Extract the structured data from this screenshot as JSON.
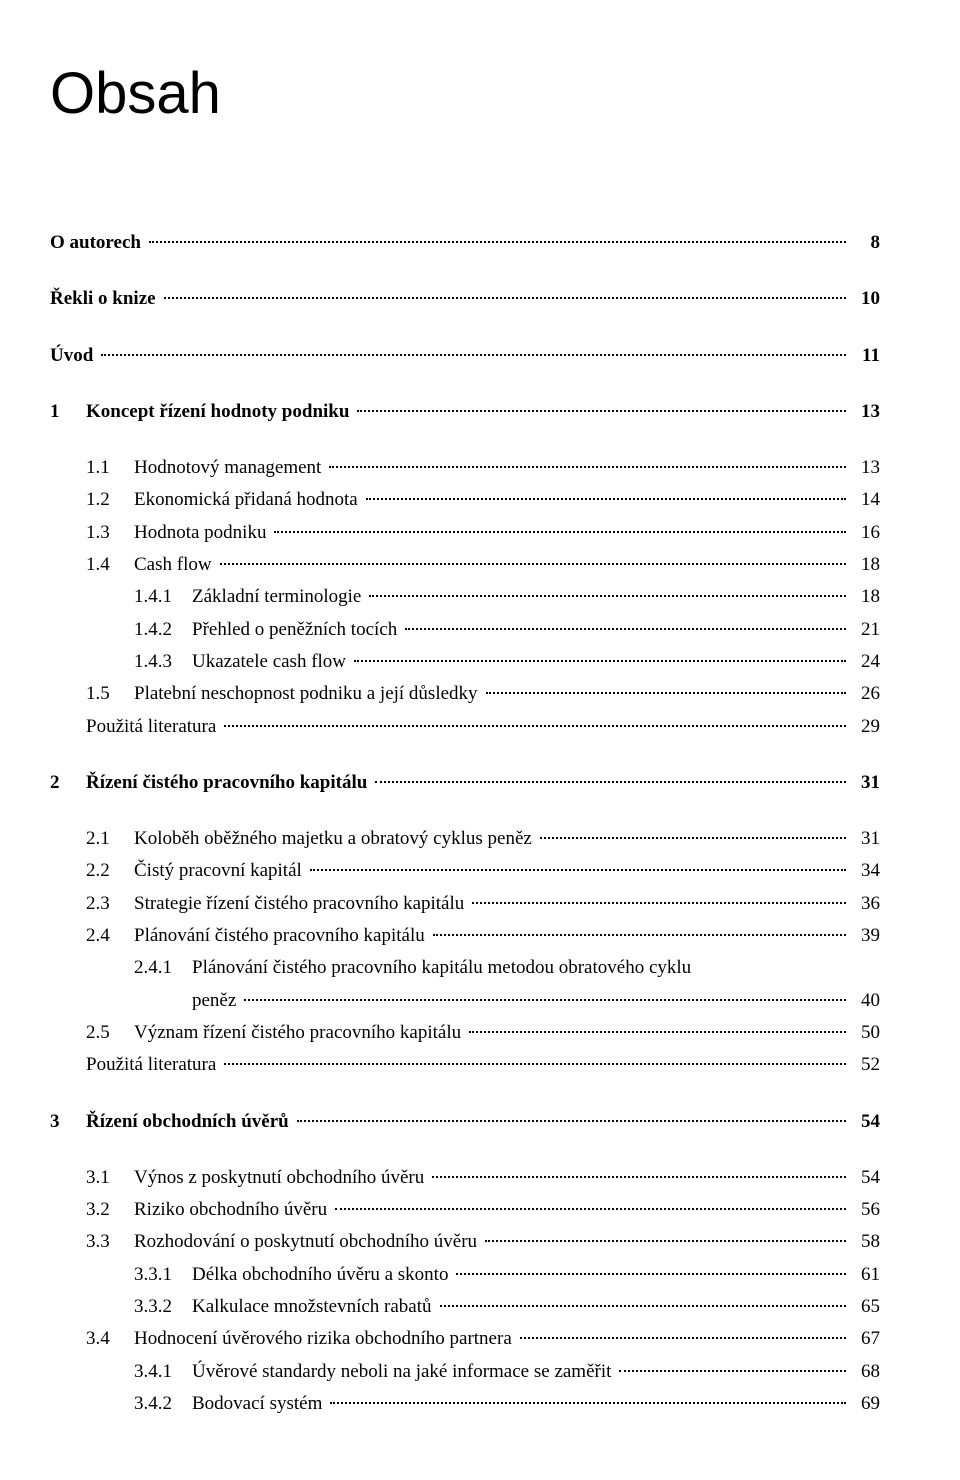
{
  "title": "Obsah",
  "front": [
    {
      "label": "O autorech",
      "page": "8"
    },
    {
      "label": "Řekli o knize",
      "page": "10"
    },
    {
      "label": "Úvod",
      "page": "11"
    }
  ],
  "chapters": [
    {
      "num": "1",
      "label": "Koncept řízení hodnoty podniku",
      "page": "13",
      "sections": [
        {
          "num": "1.1",
          "label": "Hodnotový management",
          "page": "13"
        },
        {
          "num": "1.2",
          "label": "Ekonomická přidaná hodnota",
          "page": "14"
        },
        {
          "num": "1.3",
          "label": "Hodnota podniku",
          "page": "16"
        },
        {
          "num": "1.4",
          "label": "Cash flow",
          "page": "18",
          "subs": [
            {
              "num": "1.4.1",
              "label": "Základní terminologie",
              "page": "18"
            },
            {
              "num": "1.4.2",
              "label": "Přehled o peněžních tocích",
              "page": "21"
            },
            {
              "num": "1.4.3",
              "label": "Ukazatele cash flow",
              "page": "24"
            }
          ]
        },
        {
          "num": "1.5",
          "label": "Platební neschopnost podniku a její důsledky",
          "page": "26"
        }
      ],
      "tail": [
        {
          "label": "Použitá literatura",
          "page": "29"
        }
      ]
    },
    {
      "num": "2",
      "label": "Řízení čistého pracovního kapitálu",
      "page": "31",
      "sections": [
        {
          "num": "2.1",
          "label": "Koloběh oběžného majetku a obratový cyklus peněz",
          "page": "31"
        },
        {
          "num": "2.2",
          "label": "Čistý pracovní kapitál",
          "page": "34"
        },
        {
          "num": "2.3",
          "label": "Strategie řízení čistého pracovního kapitálu",
          "page": "36"
        },
        {
          "num": "2.4",
          "label": "Plánování čistého pracovního kapitálu",
          "page": "39",
          "subs": [
            {
              "num": "2.4.1",
              "label": "Plánování čistého pracovního kapitálu metodou obratového cyklu",
              "label2": "peněz",
              "page": "40"
            }
          ]
        },
        {
          "num": "2.5",
          "label": "Význam řízení čistého pracovního kapitálu",
          "page": "50"
        }
      ],
      "tail": [
        {
          "label": "Použitá literatura",
          "page": "52"
        }
      ]
    },
    {
      "num": "3",
      "label": "Řízení obchodních úvěrů",
      "page": "54",
      "sections": [
        {
          "num": "3.1",
          "label": "Výnos z poskytnutí obchodního úvěru",
          "page": "54"
        },
        {
          "num": "3.2",
          "label": "Riziko obchodního úvěru",
          "page": "56"
        },
        {
          "num": "3.3",
          "label": "Rozhodování o poskytnutí obchodního úvěru",
          "page": "58",
          "subs": [
            {
              "num": "3.3.1",
              "label": "Délka obchodního úvěru a skonto",
              "page": "61"
            },
            {
              "num": "3.3.2",
              "label": "Kalkulace množstevních rabatů",
              "page": "65"
            }
          ]
        },
        {
          "num": "3.4",
          "label": "Hodnocení úvěrového rizika obchodního partnera",
          "page": "67",
          "subs": [
            {
              "num": "3.4.1",
              "label": "Úvěrové standardy neboli na jaké informace se zaměřit",
              "page": "68"
            },
            {
              "num": "3.4.2",
              "label": "Bodovací systém",
              "page": "69"
            }
          ]
        }
      ],
      "tail": []
    }
  ]
}
